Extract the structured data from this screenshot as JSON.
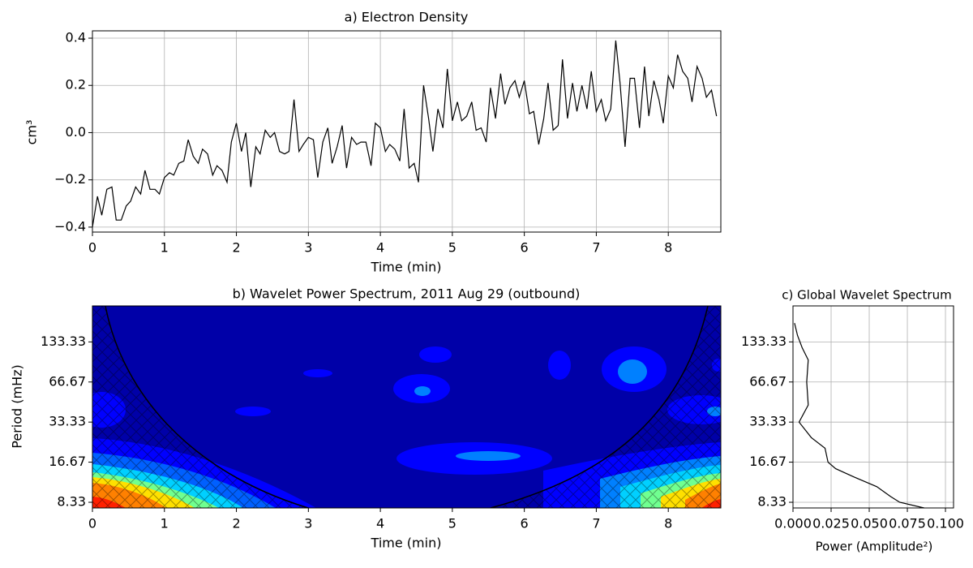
{
  "chart_data": [
    {
      "type": "line",
      "title": "a) Electron Density",
      "xlabel": "Time (min)",
      "ylabel": "cm³",
      "color": "#000000",
      "grid": true,
      "x": [
        0,
        0.07,
        0.13,
        0.2,
        0.27,
        0.33,
        0.4,
        0.47,
        0.53,
        0.6,
        0.67,
        0.73,
        0.8,
        0.87,
        0.93,
        1,
        1.07,
        1.13,
        1.2,
        1.27,
        1.33,
        1.4,
        1.47,
        1.53,
        1.6,
        1.67,
        1.73,
        1.8,
        1.87,
        1.93,
        2,
        2.07,
        2.13,
        2.2,
        2.27,
        2.33,
        2.4,
        2.47,
        2.53,
        2.6,
        2.67,
        2.73,
        2.8,
        2.87,
        2.93,
        3,
        3.07,
        3.13,
        3.2,
        3.27,
        3.33,
        3.4,
        3.47,
        3.53,
        3.6,
        3.67,
        3.73,
        3.8,
        3.87,
        3.93,
        4,
        4.07,
        4.13,
        4.2,
        4.27,
        4.33,
        4.4,
        4.47,
        4.53,
        4.6,
        4.67,
        4.73,
        4.8,
        4.87,
        4.93,
        5,
        5.07,
        5.13,
        5.2,
        5.27,
        5.33,
        5.4,
        5.47,
        5.53,
        5.6,
        5.67,
        5.73,
        5.8,
        5.87,
        5.93,
        6,
        6.07,
        6.13,
        6.2,
        6.27,
        6.33,
        6.4,
        6.47,
        6.53,
        6.6,
        6.67,
        6.73,
        6.8,
        6.87,
        6.93,
        7,
        7.07,
        7.13,
        7.2,
        7.27,
        7.33,
        7.4,
        7.47,
        7.53,
        7.6,
        7.67,
        7.73,
        7.8,
        7.87,
        7.93,
        8,
        8.07,
        8.13,
        8.2,
        8.27,
        8.33,
        8.4,
        8.47,
        8.53,
        8.6,
        8.67
      ],
      "values": [
        -0.4,
        -0.27,
        -0.35,
        -0.24,
        -0.23,
        -0.37,
        -0.37,
        -0.31,
        -0.29,
        -0.23,
        -0.26,
        -0.16,
        -0.24,
        -0.24,
        -0.26,
        -0.19,
        -0.17,
        -0.18,
        -0.13,
        -0.12,
        -0.03,
        -0.1,
        -0.13,
        -0.07,
        -0.09,
        -0.18,
        -0.14,
        -0.16,
        -0.21,
        -0.04,
        0.04,
        -0.08,
        0,
        -0.23,
        -0.06,
        -0.09,
        0.01,
        -0.02,
        0,
        -0.08,
        -0.09,
        -0.08,
        0.14,
        -0.08,
        -0.05,
        -0.02,
        -0.03,
        -0.19,
        -0.04,
        0.02,
        -0.13,
        -0.06,
        0.03,
        -0.15,
        -0.02,
        -0.05,
        -0.04,
        -0.04,
        -0.14,
        0.04,
        0.02,
        -0.08,
        -0.05,
        -0.07,
        -0.12,
        0.1,
        -0.15,
        -0.13,
        -0.21,
        0.2,
        0.06,
        -0.08,
        0.1,
        0.02,
        0.27,
        0.05,
        0.13,
        0.05,
        0.07,
        0.13,
        0.01,
        0.02,
        -0.04,
        0.19,
        0.06,
        0.25,
        0.12,
        0.19,
        0.22,
        0.15,
        0.22,
        0.08,
        0.09,
        -0.05,
        0.06,
        0.21,
        0.01,
        0.03,
        0.31,
        0.06,
        0.21,
        0.09,
        0.2,
        0.1,
        0.26,
        0.09,
        0.14,
        0.05,
        0.1,
        0.39,
        0.21,
        -0.06,
        0.23,
        0.23,
        0.02,
        0.28,
        0.07,
        0.22,
        0.14,
        0.04,
        0.24,
        0.19,
        0.33,
        0.26,
        0.23,
        0.13,
        0.28,
        0.23,
        0.15,
        0.18,
        0.07
      ],
      "xlim": [
        0,
        8.73
      ],
      "xticks": [
        0,
        1,
        2,
        3,
        4,
        5,
        6,
        7,
        8
      ],
      "ylim": [
        -0.421,
        0.431
      ],
      "yticks": [
        {
          "value": -0.4,
          "label": "−0.4"
        },
        {
          "value": -0.2,
          "label": "−0.2"
        },
        {
          "value": 0,
          "label": "0.0"
        },
        {
          "value": 0.2,
          "label": "0.2"
        },
        {
          "value": 0.4,
          "label": "0.4"
        }
      ]
    },
    {
      "type": "contour",
      "title": "b) Wavelet Power Spectrum, 2011 Aug 29 (outbound)",
      "xlabel": "Time (min)",
      "ylabel": "Period (mHz)",
      "grid": false,
      "xlim": [
        0,
        8.73
      ],
      "xticks": [
        0,
        1,
        2,
        3,
        4,
        5,
        6,
        7,
        8
      ],
      "yscale": "log",
      "ylim": [
        7.55,
        248.5
      ],
      "yticks": [
        8.33,
        16.67,
        33.33,
        66.67,
        133.33
      ]
    },
    {
      "type": "line",
      "orientation": "horizontal",
      "title": "c) Global Wavelet Spectrum",
      "xlabel": "Power (Amplitude²)",
      "color": "#000000",
      "grid": true,
      "periods": [
        184.5,
        149,
        120.7,
        97.6,
        66.67,
        44.8,
        33.33,
        25.5,
        21.2,
        16.67,
        14.9,
        12.9,
        10.9,
        9.2,
        8.33,
        7.55
      ],
      "values": [
        0.001,
        0.003,
        0.006,
        0.01,
        0.009,
        0.01,
        0.004,
        0.012,
        0.021,
        0.023,
        0.028,
        0.04,
        0.055,
        0.064,
        0.07,
        0.086
      ],
      "xlim": [
        0,
        0.1053
      ],
      "xticks": [
        {
          "value": 0,
          "label": "0.000"
        },
        {
          "value": 0.025,
          "label": "0.025"
        },
        {
          "value": 0.05,
          "label": "0.050"
        },
        {
          "value": 0.075,
          "label": "0.075"
        },
        {
          "value": 0.1,
          "label": "0.100"
        }
      ],
      "yscale": "log",
      "ylim": [
        7.55,
        248.5
      ],
      "yticks": [
        8.33,
        16.67,
        33.33,
        66.67,
        133.33
      ]
    }
  ]
}
